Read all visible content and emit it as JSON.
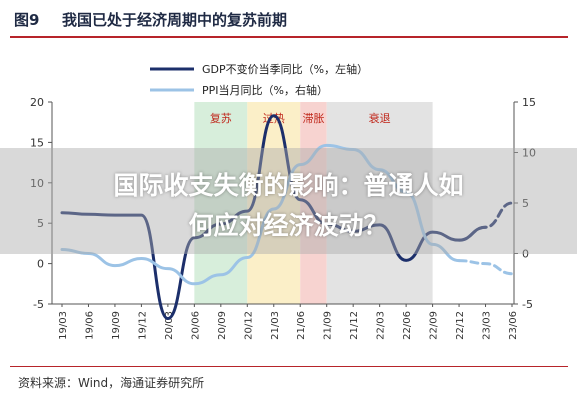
{
  "figure": {
    "number": "图9",
    "title": "我国已处于经济周期中的复苏前期",
    "source": "资料来源：Wind，海通证券研究所"
  },
  "overlay": {
    "line1": "国际收支失衡的影响：普通人如",
    "line2": "何应对经济波动？"
  },
  "colors": {
    "gdp": "#1c2f6b",
    "ppi": "#9cc3e6",
    "phase_recovery": "#d7eedb",
    "phase_overheat": "#fbefc8",
    "phase_stagflation": "#f7d3d0",
    "phase_recession": "#e3e3e3",
    "phase_label": "#c0281c",
    "title_rule": "#b7242a"
  },
  "chart_data": {
    "type": "line",
    "title": "",
    "xlabel": "",
    "ylabel": "",
    "x": [
      "19/03",
      "19/06",
      "19/09",
      "19/12",
      "20/03",
      "20/06",
      "20/09",
      "20/12",
      "21/03",
      "21/06",
      "21/09",
      "21/12",
      "22/03",
      "22/06",
      "22/09",
      "22/12",
      "23/03",
      "23/06"
    ],
    "x_ticks": [
      "19/03",
      "19/06",
      "19/09",
      "19/12",
      "20/03",
      "20/06",
      "20/09",
      "20/12",
      "21/03",
      "21/06",
      "21/09",
      "21/12",
      "22/03",
      "22/06",
      "22/09",
      "22/12",
      "23/03",
      "23/06"
    ],
    "ylim_left": [
      -5,
      20
    ],
    "yticks_left": [
      -5,
      0,
      5,
      10,
      15,
      20
    ],
    "ylim_right": [
      -5,
      15
    ],
    "yticks_right": [
      -5,
      0,
      5,
      10,
      15
    ],
    "grid": false,
    "legend": "top-center",
    "series": [
      {
        "name": "GDP不变价当季同比（%，左轴）",
        "axis": "left",
        "style": "solid",
        "values": [
          6.3,
          6.1,
          6.0,
          6.0,
          -6.8,
          3.2,
          4.9,
          6.5,
          18.3,
          7.9,
          4.9,
          4.0,
          4.8,
          0.4,
          3.9,
          2.9,
          4.5,
          null
        ]
      },
      {
        "name": "GDP不变价当季同比（%，左轴）预测",
        "axis": "left",
        "style": "dashed",
        "values": [
          null,
          null,
          null,
          null,
          null,
          null,
          null,
          null,
          null,
          null,
          null,
          null,
          null,
          null,
          null,
          2.9,
          4.5,
          7.5
        ]
      },
      {
        "name": "PPI当月同比（%，右轴）",
        "axis": "right",
        "style": "solid",
        "values": [
          0.4,
          0.0,
          -1.2,
          -0.5,
          -1.5,
          -3.0,
          -2.1,
          -0.4,
          4.4,
          8.8,
          10.7,
          10.3,
          8.3,
          6.1,
          0.9,
          -0.7,
          null,
          null
        ]
      },
      {
        "name": "PPI当月同比（%，右轴）预测",
        "axis": "right",
        "style": "dashed",
        "values": [
          null,
          null,
          null,
          null,
          null,
          null,
          null,
          null,
          null,
          null,
          null,
          null,
          null,
          null,
          null,
          -0.7,
          -1.0,
          -2.0
        ]
      }
    ],
    "phases": [
      {
        "label": "复苏",
        "from": "20/06",
        "to": "20/12"
      },
      {
        "label": "过热",
        "from": "20/12",
        "to": "21/06"
      },
      {
        "label": "滞胀",
        "from": "21/06",
        "to": "21/09"
      },
      {
        "label": "衰退",
        "from": "21/09",
        "to": "22/09"
      }
    ],
    "legend_entries": [
      "GDP不变价当季同比（%，左轴）",
      "PPI当月同比（%，右轴）"
    ]
  }
}
